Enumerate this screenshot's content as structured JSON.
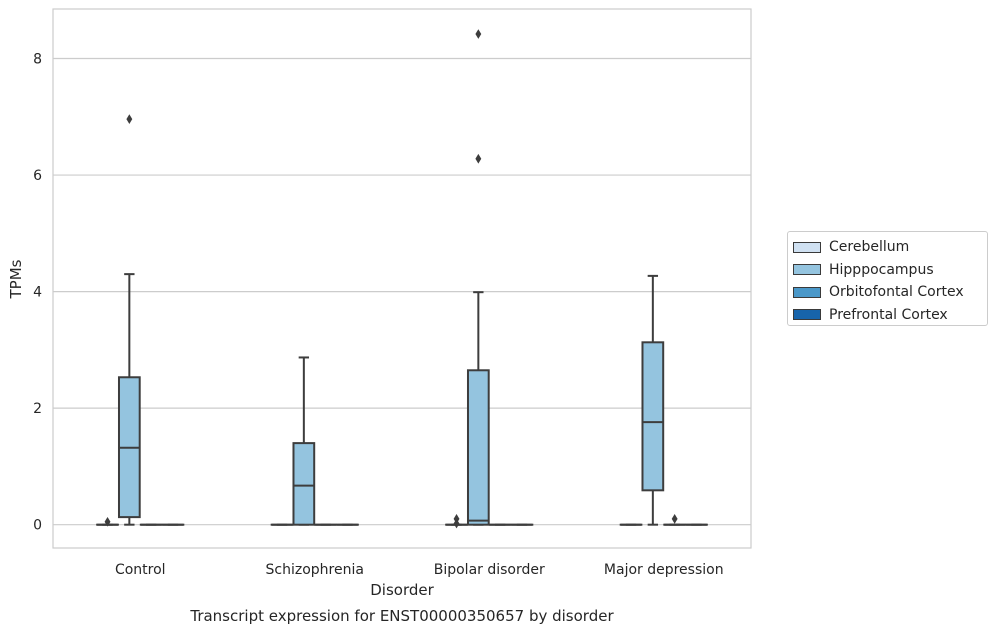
{
  "chart_data": {
    "type": "box",
    "title": "Transcript expression for ENST00000350657 by disorder",
    "xlabel": "Disorder",
    "ylabel": "TPMs",
    "ylim": [
      -0.4,
      8.85
    ],
    "yticks": [
      0,
      2,
      4,
      6,
      8
    ],
    "grid": "y",
    "legend_position": "right",
    "categories": [
      "Control",
      "Schizophrenia",
      "Bipolar disorder",
      "Major depression"
    ],
    "series": [
      {
        "name": "Cerebellum",
        "color": "#d0e1f2",
        "boxes": [
          {
            "q1": 0,
            "median": 0,
            "q3": 0,
            "whislo": 0,
            "whishi": 0,
            "fliers": [
              0.05
            ]
          },
          {
            "q1": 0,
            "median": 0,
            "q3": 0,
            "whislo": 0,
            "whishi": 0,
            "fliers": []
          },
          {
            "q1": 0,
            "median": 0,
            "q3": 0,
            "whislo": 0,
            "whishi": 0,
            "fliers": [
              0.02,
              0.1
            ]
          },
          {
            "q1": 0,
            "median": 0,
            "q3": 0,
            "whislo": 0,
            "whishi": 0,
            "fliers": []
          }
        ]
      },
      {
        "name": "Hipppocampus",
        "color": "#94c4df",
        "boxes": [
          {
            "q1": 0.13,
            "median": 1.32,
            "q3": 2.53,
            "whislo": 0,
            "whishi": 4.3,
            "fliers": [
              6.96
            ]
          },
          {
            "q1": 0,
            "median": 0.67,
            "q3": 1.4,
            "whislo": 0,
            "whishi": 2.87,
            "fliers": []
          },
          {
            "q1": 0.0,
            "median": 0.07,
            "q3": 2.65,
            "whislo": 0,
            "whishi": 3.99,
            "fliers": [
              6.28,
              8.42
            ]
          },
          {
            "q1": 0.59,
            "median": 1.76,
            "q3": 3.13,
            "whislo": 0,
            "whishi": 4.27,
            "fliers": []
          }
        ]
      },
      {
        "name": "Orbitofontal Cortex",
        "color": "#4a98c9",
        "boxes": [
          {
            "q1": 0,
            "median": 0,
            "q3": 0,
            "whislo": 0,
            "whishi": 0,
            "fliers": []
          },
          {
            "q1": 0,
            "median": 0,
            "q3": 0,
            "whislo": 0,
            "whishi": 0,
            "fliers": []
          },
          {
            "q1": 0,
            "median": 0,
            "q3": 0,
            "whislo": 0,
            "whishi": 0,
            "fliers": []
          },
          {
            "q1": 0,
            "median": 0,
            "q3": 0,
            "whislo": 0,
            "whishi": 0,
            "fliers": [
              0.1
            ]
          }
        ]
      },
      {
        "name": "Prefrontal Cortex",
        "color": "#1764ab",
        "boxes": [
          {
            "q1": 0,
            "median": 0,
            "q3": 0,
            "whislo": 0,
            "whishi": 0,
            "fliers": []
          },
          {
            "q1": 0,
            "median": 0,
            "q3": 0,
            "whislo": 0,
            "whishi": 0,
            "fliers": []
          },
          {
            "q1": 0,
            "median": 0,
            "q3": 0,
            "whislo": 0,
            "whishi": 0,
            "fliers": []
          },
          {
            "q1": 0,
            "median": 0,
            "q3": 0,
            "whislo": 0,
            "whishi": 0,
            "fliers": []
          }
        ]
      }
    ]
  }
}
